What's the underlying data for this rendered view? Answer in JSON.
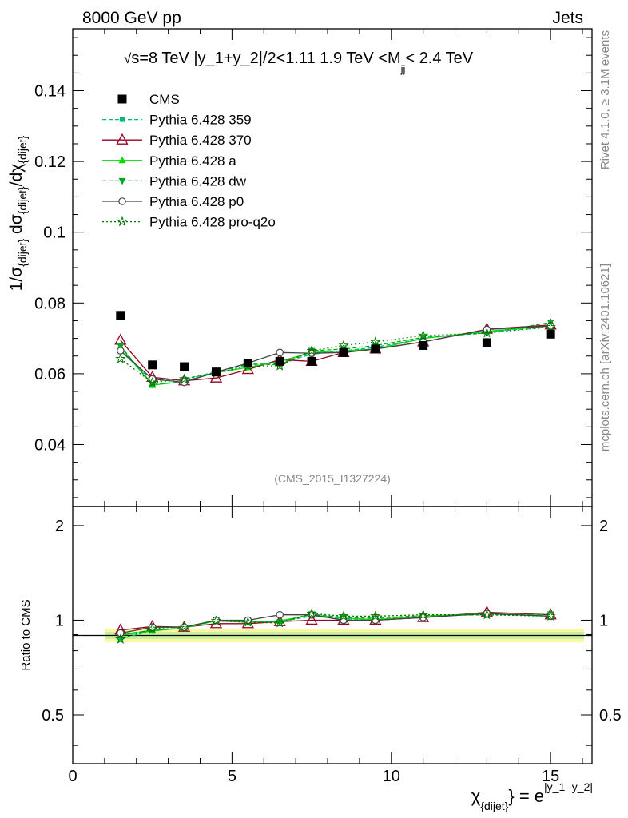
{
  "header": {
    "left": "8000 GeV pp",
    "right": "Jets"
  },
  "side": {
    "rivet": "Rivet 4.1.0, ≥ 3.1M events",
    "url": "mcplots.cern.ch [arXiv:2401.10621]"
  },
  "chart_data": {
    "type": "line",
    "title": "√s=8 TeV |y_1+y_2|/2<1.11 1.9 TeV <M_jj< 2.4 TeV",
    "title_parts": {
      "pre": "√",
      "s": "s=8 TeV |y_1+y_2|/2<1.11 1.9 TeV <M",
      "sub": "jj",
      "post": "< 2.4 TeV"
    },
    "analysis_id": "(CMS_2015_I1327224)",
    "ylabel": "1/σ{dijet} dσ{dijet}/dχ{dijet}",
    "ylabel_parts": {
      "a": "1/σ",
      "a_sub": "{dijet}",
      "b": " dσ",
      "b_sub": "{dijet}",
      "c": "/dχ",
      "c_sub": "{dijet}"
    },
    "xlabel_parts": {
      "chi": "χ",
      "sub": "{dijet}",
      "mid": "} = e",
      "sup": "|y_1 -y_2|"
    },
    "ratio_ylabel": "Ratio to CMS",
    "xlim": [
      0,
      16.3
    ],
    "ylim": [
      0.0225,
      0.1575
    ],
    "ratio_ylim": [
      0.35,
      2.3
    ],
    "x_ticks": [
      "0",
      "5",
      "10",
      "15"
    ],
    "x_tick_values": [
      0,
      5,
      10,
      15
    ],
    "y_ticks": [
      "0.04",
      "0.06",
      "0.08",
      "0.1",
      "0.12",
      "0.14"
    ],
    "y_tick_values": [
      0.04,
      0.06,
      0.08,
      0.1,
      0.12,
      0.14
    ],
    "ratio_ticks": [
      "0.5",
      "1",
      "2"
    ],
    "ratio_tick_values": [
      0.5,
      1,
      2
    ],
    "x": [
      1.5,
      2.5,
      3.5,
      4.5,
      5.5,
      6.5,
      7.5,
      8.5,
      9.5,
      11,
      13,
      15
    ],
    "data": {
      "name": "CMS",
      "color": "#000000",
      "marker": "square",
      "values": [
        0.0765,
        0.0625,
        0.062,
        0.0605,
        0.063,
        0.0635,
        0.0635,
        0.066,
        0.067,
        0.068,
        0.0688,
        0.0712
      ]
    },
    "series": [
      {
        "name": "Pythia 6.428 359",
        "color": "#00b87a",
        "dash": "5,3",
        "marker": "square-small",
        "values": [
          0.0665,
          0.058,
          0.0585,
          0.0605,
          0.0625,
          0.063,
          0.0655,
          0.0665,
          0.0675,
          0.07,
          0.0718,
          0.0732
        ],
        "ratio": [
          0.87,
          0.93,
          0.945,
          1.0,
          0.99,
          0.99,
          1.03,
          1.01,
          1.005,
          1.03,
          1.045,
          1.03
        ]
      },
      {
        "name": "Pythia 6.428 370",
        "color": "#990022",
        "dash": "",
        "marker": "triangle-open",
        "values": [
          0.0695,
          0.059,
          0.058,
          0.0588,
          0.0612,
          0.064,
          0.0635,
          0.066,
          0.067,
          0.069,
          0.0726,
          0.0738
        ],
        "ratio": [
          0.93,
          0.955,
          0.95,
          0.975,
          0.975,
          0.99,
          1.0,
          1.0,
          1.0,
          1.02,
          1.06,
          1.04
        ]
      },
      {
        "name": "Pythia 6.428 a",
        "color": "#00dd00",
        "dash": "",
        "marker": "triangle",
        "values": [
          0.0675,
          0.0568,
          0.0578,
          0.0603,
          0.0618,
          0.0635,
          0.066,
          0.0665,
          0.067,
          0.07,
          0.072,
          0.0735
        ],
        "ratio": [
          0.895,
          0.925,
          0.945,
          0.995,
          0.985,
          0.995,
          1.04,
          1.015,
          1.005,
          1.03,
          1.05,
          1.03
        ]
      },
      {
        "name": "Pythia 6.428 dw",
        "color": "#00aa22",
        "dash": "5,3",
        "marker": "triangle-down",
        "values": [
          0.0678,
          0.057,
          0.0578,
          0.0605,
          0.0628,
          0.0625,
          0.0665,
          0.067,
          0.068,
          0.0703,
          0.0715,
          0.0745
        ],
        "ratio": [
          0.9,
          0.93,
          0.945,
          1.0,
          0.995,
          0.985,
          1.045,
          1.02,
          1.015,
          1.035,
          1.04,
          1.045
        ]
      },
      {
        "name": "Pythia 6.428 p0",
        "color": "#444444",
        "dash": "",
        "marker": "circle-open",
        "values": [
          0.0665,
          0.0585,
          0.0576,
          0.0605,
          0.063,
          0.066,
          0.0658,
          0.066,
          0.067,
          0.069,
          0.0725,
          0.0735
        ],
        "ratio": [
          0.91,
          0.95,
          0.95,
          1.0,
          1.0,
          1.04,
          1.04,
          1.0,
          1.0,
          1.02,
          1.05,
          1.03
        ]
      },
      {
        "name": "Pythia 6.428 pro-q2o",
        "color": "#007700",
        "dash": "2,3",
        "marker": "star",
        "values": [
          0.0642,
          0.0575,
          0.0585,
          0.0602,
          0.0622,
          0.0622,
          0.0665,
          0.068,
          0.069,
          0.0708,
          0.0715,
          0.0732
        ],
        "ratio": [
          0.87,
          0.94,
          0.955,
          0.995,
          0.985,
          0.98,
          1.05,
          1.03,
          1.03,
          1.04,
          1.04,
          1.03
        ]
      }
    ]
  }
}
